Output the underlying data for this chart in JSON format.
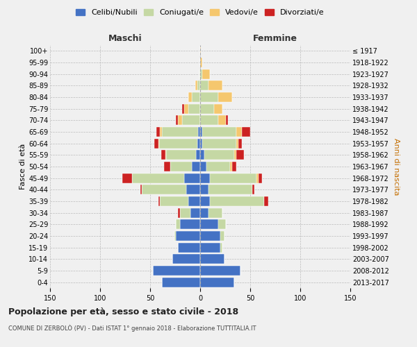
{
  "age_groups": [
    "0-4",
    "5-9",
    "10-14",
    "15-19",
    "20-24",
    "25-29",
    "30-34",
    "35-39",
    "40-44",
    "45-49",
    "50-54",
    "55-59",
    "60-64",
    "65-69",
    "70-74",
    "75-79",
    "80-84",
    "85-89",
    "90-94",
    "95-99",
    "100+"
  ],
  "birth_years": [
    "2013-2017",
    "2008-2012",
    "2003-2007",
    "1998-2002",
    "1993-1997",
    "1988-1992",
    "1983-1987",
    "1978-1982",
    "1973-1977",
    "1968-1972",
    "1963-1967",
    "1958-1962",
    "1953-1957",
    "1948-1952",
    "1943-1947",
    "1938-1942",
    "1933-1937",
    "1928-1932",
    "1923-1927",
    "1918-1922",
    "≤ 1917"
  ],
  "male": {
    "celibe": [
      38,
      47,
      28,
      22,
      24,
      20,
      10,
      12,
      14,
      16,
      8,
      4,
      3,
      2,
      0,
      0,
      0,
      0,
      0,
      0,
      0
    ],
    "coniugato": [
      0,
      0,
      0,
      0,
      2,
      4,
      10,
      28,
      44,
      52,
      22,
      30,
      38,
      36,
      18,
      12,
      8,
      3,
      1,
      0,
      0
    ],
    "vedovo": [
      0,
      0,
      0,
      0,
      0,
      0,
      0,
      0,
      0,
      0,
      0,
      1,
      1,
      2,
      4,
      4,
      4,
      2,
      0,
      0,
      0
    ],
    "divorziato": [
      0,
      0,
      0,
      0,
      0,
      0,
      2,
      2,
      2,
      10,
      6,
      4,
      4,
      4,
      2,
      2,
      0,
      0,
      0,
      0,
      0
    ]
  },
  "female": {
    "nubile": [
      34,
      40,
      24,
      20,
      20,
      18,
      8,
      10,
      8,
      10,
      6,
      4,
      2,
      2,
      0,
      0,
      0,
      0,
      0,
      0,
      0
    ],
    "coniugata": [
      0,
      0,
      0,
      2,
      4,
      8,
      14,
      54,
      44,
      46,
      24,
      30,
      34,
      34,
      18,
      14,
      18,
      8,
      2,
      0,
      0
    ],
    "vedova": [
      0,
      0,
      0,
      0,
      0,
      0,
      0,
      0,
      0,
      2,
      2,
      2,
      2,
      6,
      8,
      8,
      14,
      14,
      8,
      2,
      1
    ],
    "divorziata": [
      0,
      0,
      0,
      0,
      0,
      0,
      0,
      4,
      2,
      4,
      4,
      8,
      4,
      8,
      2,
      0,
      0,
      0,
      0,
      0,
      0
    ]
  },
  "colors": {
    "celibe": "#4472c4",
    "coniugato": "#c5d8a4",
    "vedovo": "#f5c76e",
    "divorziato": "#cc2222"
  },
  "xlim": 150,
  "title": "Popolazione per età, sesso e stato civile - 2018",
  "subtitle": "COMUNE DI ZERBOLÒ (PV) - Dati ISTAT 1° gennaio 2018 - Elaborazione TUTTITALIA.IT",
  "ylabel_left": "Fasce di età",
  "ylabel_right": "Anni di nascita",
  "xlabel_left": "Maschi",
  "xlabel_right": "Femmine",
  "legend_labels": [
    "Celibi/Nubili",
    "Coniugati/e",
    "Vedovi/e",
    "Divorziati/e"
  ],
  "background_color": "#f0f0f0"
}
